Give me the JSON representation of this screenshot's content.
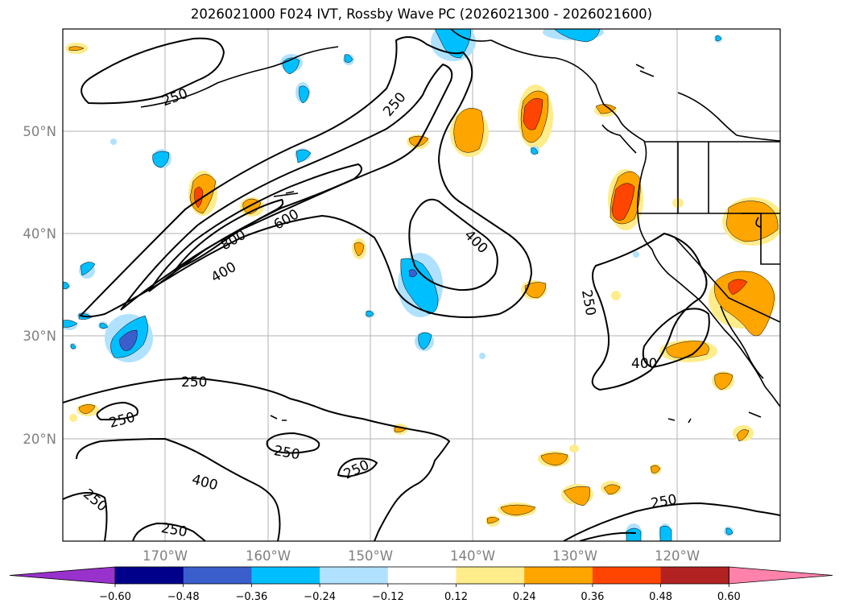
{
  "title": "2026021000 F024 IVT, Rossby Wave PC (2026021300 - 2026021600)",
  "axes": {
    "lat_labels": [
      "50°N",
      "40°N",
      "30°N",
      "20°N"
    ],
    "lon_labels": [
      "170°W",
      "160°W",
      "150°W",
      "140°W",
      "130°W",
      "120°W"
    ],
    "extent": {
      "lon_min": -180,
      "lon_max": -110,
      "lat_min": 10,
      "lat_max": 60
    },
    "grid": true
  },
  "contours": {
    "levels": [
      250,
      400,
      600,
      800
    ],
    "labels": [
      "250",
      "250",
      "400",
      "800",
      "600",
      "400",
      "400",
      "250",
      "250",
      "250",
      "250",
      "250",
      "400",
      "250",
      "250",
      "250"
    ]
  },
  "colorbar": {
    "ticks": [
      "−0.60",
      "−0.48",
      "−0.36",
      "−0.24",
      "−0.12",
      "0.12",
      "0.24",
      "0.36",
      "0.48",
      "0.60"
    ],
    "colors": [
      "#9932cc",
      "#00008b",
      "#3a5fcd",
      "#00bfff",
      "#b0e2ff",
      "#ffffff",
      "#ffec8b",
      "#ffa500",
      "#ff4500",
      "#b22222",
      "#ff82ab"
    ]
  }
}
